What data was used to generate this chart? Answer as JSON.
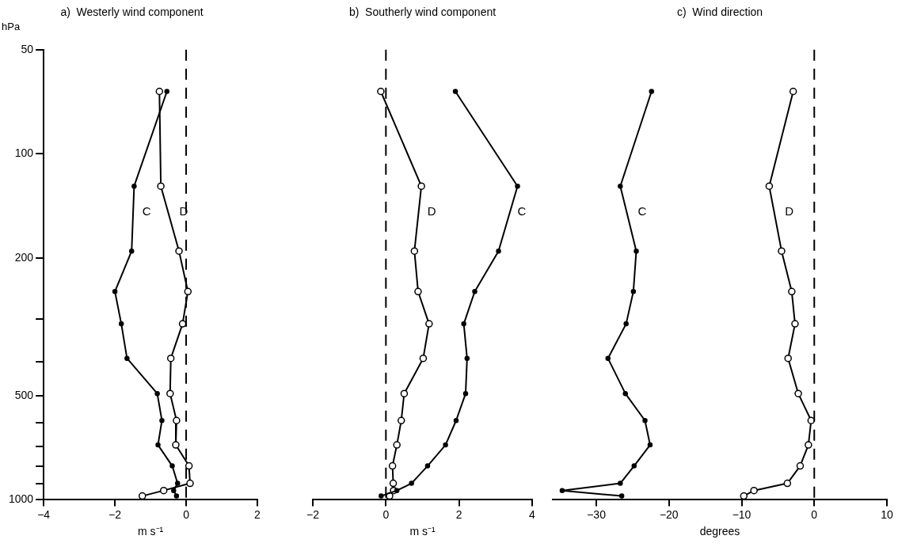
{
  "chart_data": [
    {
      "type": "line",
      "title": "a)  Westerly wind component",
      "xlabel": "m s⁻¹",
      "ylabel": "hPa",
      "xlim": [
        -4,
        2
      ],
      "xticks": [
        -4,
        -2,
        0,
        2
      ],
      "ylim": [
        1000,
        50
      ],
      "log": "y",
      "yticks": [
        50,
        100,
        200,
        {
          "value": 300,
          "label": null
        },
        {
          "value": 400,
          "label": null
        },
        500,
        {
          "value": 600,
          "label": null
        },
        {
          "value": 700,
          "label": null
        },
        {
          "value": 800,
          "label": null
        },
        {
          "value": 900,
          "label": null
        },
        1000
      ],
      "marker": "circle",
      "ref_lines": [
        {
          "axis": "x",
          "value": 0,
          "line_style": "dashed"
        }
      ],
      "series": [
        {
          "name": "C",
          "color": "#000000",
          "x": [
            -0.54,
            -1.46,
            -1.53,
            -2.0,
            -1.82,
            -1.66,
            -0.81,
            -0.68,
            -0.79,
            -0.39,
            -0.24,
            -0.35,
            -0.27
          ],
          "values": [
            66,
            124,
            191,
            250,
            310,
            390,
            493,
            590,
            694,
            798,
            896,
            940,
            975
          ]
        },
        {
          "name": "D",
          "color": "#000000",
          "x": [
            -0.75,
            -0.71,
            -0.2,
            0.05,
            -0.1,
            -0.43,
            -0.45,
            -0.27,
            -0.29,
            0.08,
            0.11,
            -0.63,
            -1.23
          ],
          "values": [
            66,
            124,
            191,
            250,
            310,
            390,
            493,
            590,
            694,
            798,
            896,
            940,
            975
          ]
        }
      ]
    },
    {
      "type": "line",
      "title": "b)  Southerly wind component",
      "xlabel": "m s⁻¹",
      "xlim": [
        -2,
        4
      ],
      "xticks": [
        -2,
        0,
        2,
        4
      ],
      "ylim": [
        1000,
        50
      ],
      "log": "y",
      "tick_labels": "x",
      "marker": "circle",
      "ref_lines": [
        {
          "axis": "x",
          "value": 0,
          "line_style": "dashed"
        }
      ],
      "series": [
        {
          "name": "C",
          "color": "#000000",
          "x": [
            1.9,
            3.6,
            3.08,
            2.43,
            2.13,
            2.22,
            2.18,
            1.92,
            1.63,
            1.14,
            0.7,
            0.3,
            -0.13
          ],
          "values": [
            66,
            124,
            191,
            250,
            310,
            390,
            493,
            590,
            694,
            798,
            896,
            940,
            975
          ]
        },
        {
          "name": "D",
          "color": "#000000",
          "x": [
            -0.14,
            0.97,
            0.78,
            0.88,
            1.18,
            1.02,
            0.5,
            0.42,
            0.3,
            0.18,
            0.2,
            0.21,
            0.1
          ],
          "values": [
            66,
            124,
            191,
            250,
            310,
            390,
            493,
            590,
            694,
            798,
            896,
            940,
            975
          ]
        }
      ]
    },
    {
      "type": "line",
      "title": "c)  Wind direction",
      "xlabel": "degrees",
      "xlim": [
        -36,
        10
      ],
      "xticks": [
        -30,
        -20,
        -10,
        0,
        10
      ],
      "ylim": [
        1000,
        50
      ],
      "log": "y",
      "tick_labels": "x",
      "marker": "circle",
      "ref_lines": [
        {
          "axis": "x",
          "value": 0,
          "line_style": "dashed"
        }
      ],
      "series": [
        {
          "name": "C",
          "color": "#000000",
          "x": [
            -22.4,
            -26.7,
            -24.5,
            -24.9,
            -25.9,
            -28.4,
            -26.0,
            -23.3,
            -22.6,
            -24.8,
            -26.7,
            -34.7,
            -26.5
          ],
          "values": [
            66,
            124,
            191,
            250,
            310,
            390,
            493,
            590,
            694,
            798,
            896,
            940,
            975
          ]
        },
        {
          "name": "D",
          "color": "#000000",
          "x": [
            -2.9,
            -6.2,
            -4.5,
            -3.1,
            -2.65,
            -3.6,
            -2.2,
            -0.43,
            -0.81,
            -1.94,
            -3.7,
            -8.3,
            -9.7
          ],
          "values": [
            66,
            124,
            191,
            250,
            310,
            390,
            493,
            590,
            694,
            798,
            896,
            940,
            975
          ]
        }
      ]
    }
  ]
}
